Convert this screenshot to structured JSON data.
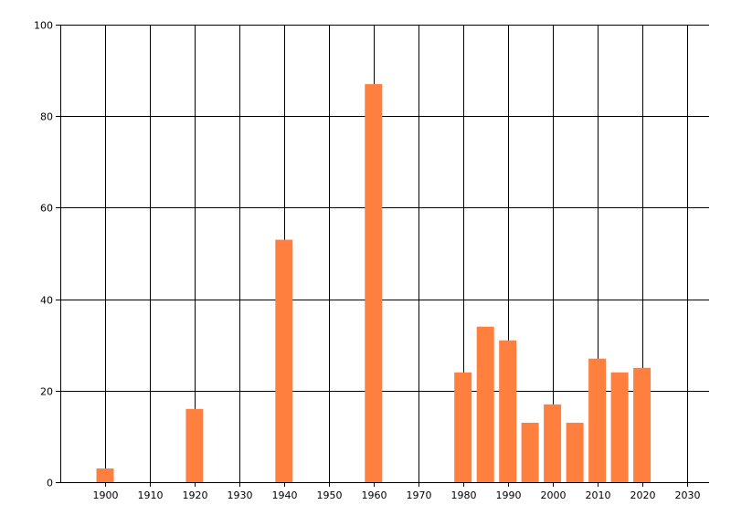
{
  "chart_data": {
    "type": "bar",
    "title": "",
    "xlabel": "",
    "ylabel": "",
    "xlim": [
      1890,
      2035
    ],
    "ylim": [
      0,
      100
    ],
    "x_ticks": [
      1900,
      1910,
      1920,
      1930,
      1940,
      1950,
      1960,
      1970,
      1980,
      1990,
      2000,
      2010,
      2020,
      2030
    ],
    "y_ticks": [
      0,
      20,
      40,
      60,
      80,
      100
    ],
    "grid": true,
    "bar_color": "#ff7f3f",
    "grid_color": "#000000",
    "x": [
      1900,
      1920,
      1940,
      1960,
      1980,
      1985,
      1990,
      1995,
      2000,
      2005,
      2010,
      2015,
      2020
    ],
    "values": [
      3,
      16,
      53,
      87,
      24,
      34,
      31,
      13,
      17,
      13,
      27,
      24,
      25
    ]
  }
}
